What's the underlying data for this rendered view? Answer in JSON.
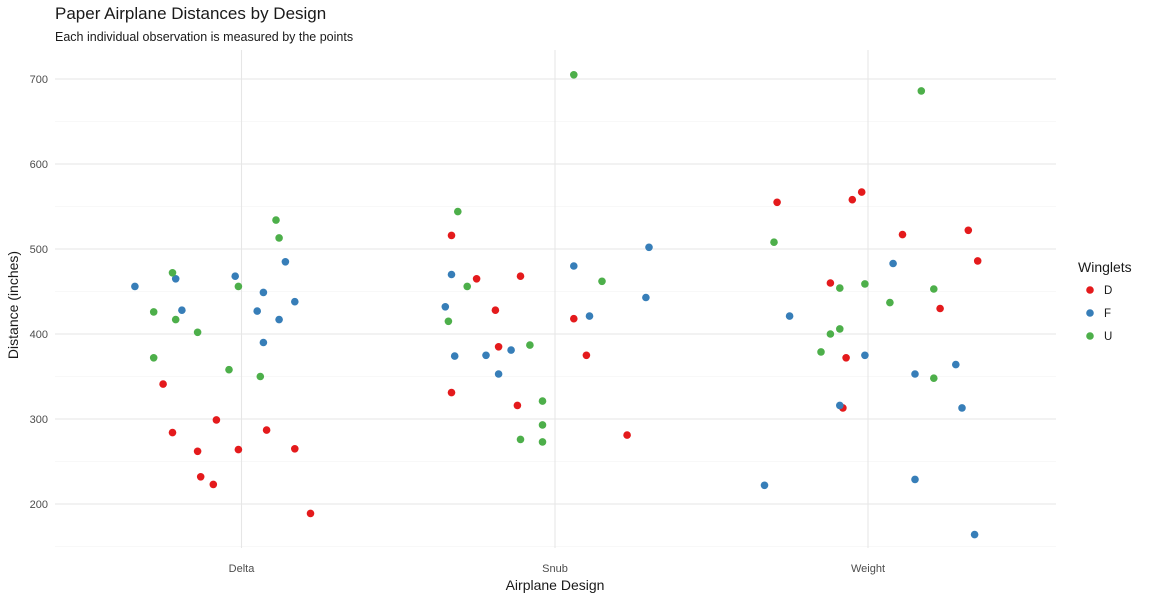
{
  "chart_data": {
    "type": "scatter",
    "title": "Paper Airplane Distances by Design",
    "subtitle": "Each individual observation is measured by the points",
    "xlabel": "Airplane Design",
    "ylabel": "Distance (inches)",
    "categories": [
      "Delta",
      "Snub",
      "Weight"
    ],
    "ylim": [
      145,
      720
    ],
    "yticks": [
      200,
      300,
      400,
      500,
      600,
      700
    ],
    "grid": true,
    "legend": {
      "title": "Winglets",
      "position": "right"
    },
    "series": [
      {
        "name": "D",
        "color": "#E41A1C",
        "points": [
          {
            "x": "Delta",
            "jitter": -0.25,
            "y": 341
          },
          {
            "x": "Delta",
            "jitter": -0.22,
            "y": 284
          },
          {
            "x": "Delta",
            "jitter": -0.14,
            "y": 262
          },
          {
            "x": "Delta",
            "jitter": -0.13,
            "y": 232
          },
          {
            "x": "Delta",
            "jitter": -0.09,
            "y": 223
          },
          {
            "x": "Delta",
            "jitter": -0.08,
            "y": 299
          },
          {
            "x": "Delta",
            "jitter": -0.01,
            "y": 264
          },
          {
            "x": "Delta",
            "jitter": 0.08,
            "y": 287
          },
          {
            "x": "Delta",
            "jitter": 0.17,
            "y": 265
          },
          {
            "x": "Delta",
            "jitter": 0.22,
            "y": 189
          },
          {
            "x": "Snub",
            "jitter": -0.33,
            "y": 516
          },
          {
            "x": "Snub",
            "jitter": -0.33,
            "y": 331
          },
          {
            "x": "Snub",
            "jitter": -0.25,
            "y": 465
          },
          {
            "x": "Snub",
            "jitter": -0.19,
            "y": 428
          },
          {
            "x": "Snub",
            "jitter": -0.18,
            "y": 385
          },
          {
            "x": "Snub",
            "jitter": -0.11,
            "y": 468
          },
          {
            "x": "Snub",
            "jitter": -0.12,
            "y": 316
          },
          {
            "x": "Snub",
            "jitter": 0.06,
            "y": 418
          },
          {
            "x": "Snub",
            "jitter": 0.1,
            "y": 375
          },
          {
            "x": "Snub",
            "jitter": 0.23,
            "y": 281
          },
          {
            "x": "Weight",
            "jitter": -0.29,
            "y": 555
          },
          {
            "x": "Weight",
            "jitter": -0.12,
            "y": 460
          },
          {
            "x": "Weight",
            "jitter": -0.07,
            "y": 372
          },
          {
            "x": "Weight",
            "jitter": -0.08,
            "y": 313
          },
          {
            "x": "Weight",
            "jitter": -0.05,
            "y": 558
          },
          {
            "x": "Weight",
            "jitter": -0.02,
            "y": 567
          },
          {
            "x": "Weight",
            "jitter": 0.11,
            "y": 517
          },
          {
            "x": "Weight",
            "jitter": 0.23,
            "y": 430
          },
          {
            "x": "Weight",
            "jitter": 0.32,
            "y": 522
          },
          {
            "x": "Weight",
            "jitter": 0.35,
            "y": 486
          }
        ]
      },
      {
        "name": "F",
        "color": "#377EB8",
        "points": [
          {
            "x": "Delta",
            "jitter": -0.34,
            "y": 456
          },
          {
            "x": "Delta",
            "jitter": -0.21,
            "y": 465
          },
          {
            "x": "Delta",
            "jitter": -0.19,
            "y": 428
          },
          {
            "x": "Delta",
            "jitter": -0.02,
            "y": 468
          },
          {
            "x": "Delta",
            "jitter": 0.05,
            "y": 427
          },
          {
            "x": "Delta",
            "jitter": 0.07,
            "y": 449
          },
          {
            "x": "Delta",
            "jitter": 0.07,
            "y": 390
          },
          {
            "x": "Delta",
            "jitter": 0.12,
            "y": 417
          },
          {
            "x": "Delta",
            "jitter": 0.14,
            "y": 485
          },
          {
            "x": "Delta",
            "jitter": 0.17,
            "y": 438
          },
          {
            "x": "Snub",
            "jitter": -0.35,
            "y": 432
          },
          {
            "x": "Snub",
            "jitter": -0.33,
            "y": 470
          },
          {
            "x": "Snub",
            "jitter": -0.32,
            "y": 374
          },
          {
            "x": "Snub",
            "jitter": -0.22,
            "y": 375
          },
          {
            "x": "Snub",
            "jitter": -0.18,
            "y": 353
          },
          {
            "x": "Snub",
            "jitter": -0.14,
            "y": 381
          },
          {
            "x": "Snub",
            "jitter": 0.06,
            "y": 480
          },
          {
            "x": "Snub",
            "jitter": 0.11,
            "y": 421
          },
          {
            "x": "Snub",
            "jitter": 0.29,
            "y": 443
          },
          {
            "x": "Snub",
            "jitter": 0.3,
            "y": 502
          },
          {
            "x": "Weight",
            "jitter": -0.33,
            "y": 222
          },
          {
            "x": "Weight",
            "jitter": -0.25,
            "y": 421
          },
          {
            "x": "Weight",
            "jitter": -0.09,
            "y": 316
          },
          {
            "x": "Weight",
            "jitter": -0.01,
            "y": 375
          },
          {
            "x": "Weight",
            "jitter": 0.08,
            "y": 483
          },
          {
            "x": "Weight",
            "jitter": 0.15,
            "y": 353
          },
          {
            "x": "Weight",
            "jitter": 0.15,
            "y": 229
          },
          {
            "x": "Weight",
            "jitter": 0.28,
            "y": 364
          },
          {
            "x": "Weight",
            "jitter": 0.3,
            "y": 313
          },
          {
            "x": "Weight",
            "jitter": 0.34,
            "y": 164
          }
        ]
      },
      {
        "name": "U",
        "color": "#4DAF4A",
        "points": [
          {
            "x": "Delta",
            "jitter": -0.28,
            "y": 426
          },
          {
            "x": "Delta",
            "jitter": -0.28,
            "y": 372
          },
          {
            "x": "Delta",
            "jitter": -0.22,
            "y": 472
          },
          {
            "x": "Delta",
            "jitter": -0.21,
            "y": 417
          },
          {
            "x": "Delta",
            "jitter": -0.14,
            "y": 402
          },
          {
            "x": "Delta",
            "jitter": -0.04,
            "y": 358
          },
          {
            "x": "Delta",
            "jitter": -0.01,
            "y": 456
          },
          {
            "x": "Delta",
            "jitter": 0.06,
            "y": 350
          },
          {
            "x": "Delta",
            "jitter": 0.11,
            "y": 534
          },
          {
            "x": "Delta",
            "jitter": 0.12,
            "y": 513
          },
          {
            "x": "Snub",
            "jitter": -0.34,
            "y": 415
          },
          {
            "x": "Snub",
            "jitter": -0.31,
            "y": 544
          },
          {
            "x": "Snub",
            "jitter": -0.28,
            "y": 456
          },
          {
            "x": "Snub",
            "jitter": -0.11,
            "y": 276
          },
          {
            "x": "Snub",
            "jitter": -0.08,
            "y": 387
          },
          {
            "x": "Snub",
            "jitter": -0.04,
            "y": 321
          },
          {
            "x": "Snub",
            "jitter": -0.04,
            "y": 293
          },
          {
            "x": "Snub",
            "jitter": -0.04,
            "y": 273
          },
          {
            "x": "Snub",
            "jitter": 0.06,
            "y": 705
          },
          {
            "x": "Snub",
            "jitter": 0.15,
            "y": 462
          },
          {
            "x": "Weight",
            "jitter": -0.3,
            "y": 508
          },
          {
            "x": "Weight",
            "jitter": -0.15,
            "y": 379
          },
          {
            "x": "Weight",
            "jitter": -0.12,
            "y": 400
          },
          {
            "x": "Weight",
            "jitter": -0.09,
            "y": 454
          },
          {
            "x": "Weight",
            "jitter": -0.09,
            "y": 406
          },
          {
            "x": "Weight",
            "jitter": -0.01,
            "y": 459
          },
          {
            "x": "Weight",
            "jitter": 0.07,
            "y": 437
          },
          {
            "x": "Weight",
            "jitter": 0.17,
            "y": 686
          },
          {
            "x": "Weight",
            "jitter": 0.21,
            "y": 453
          },
          {
            "x": "Weight",
            "jitter": 0.21,
            "y": 348
          }
        ]
      }
    ]
  }
}
